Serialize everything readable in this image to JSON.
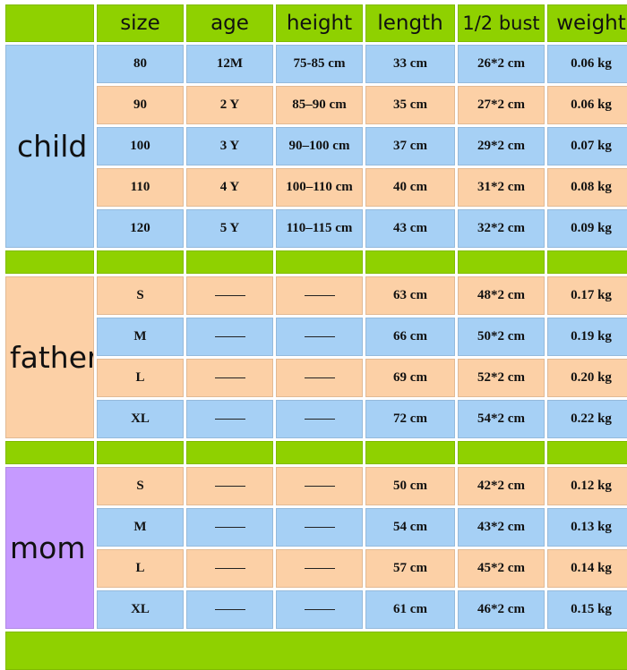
{
  "header": {
    "size": "size",
    "age": "age",
    "height": "height",
    "length": "length",
    "bust": "1/2 bust",
    "weight": "weight"
  },
  "groups": {
    "child": "child",
    "father": "father",
    "mom": "mom"
  },
  "child_rows": [
    {
      "size": "80",
      "age": "12M",
      "height": "75-85 cm",
      "length": "33 cm",
      "bust": "26*2 cm",
      "weight": "0.06 kg"
    },
    {
      "size": "90",
      "age": "2 Y",
      "height": "85–90 cm",
      "length": "35 cm",
      "bust": "27*2 cm",
      "weight": "0.06 kg"
    },
    {
      "size": "100",
      "age": "3 Y",
      "height": "90–100 cm",
      "length": "37 cm",
      "bust": "29*2 cm",
      "weight": "0.07 kg"
    },
    {
      "size": "110",
      "age": "4 Y",
      "height": "100–110 cm",
      "length": "40 cm",
      "bust": "31*2 cm",
      "weight": "0.08 kg"
    },
    {
      "size": "120",
      "age": "5 Y",
      "height": "110–115 cm",
      "length": "43 cm",
      "bust": "32*2 cm",
      "weight": "0.09 kg"
    }
  ],
  "father_rows": [
    {
      "size": "S",
      "length": "63 cm",
      "bust": "48*2 cm",
      "weight": "0.17 kg"
    },
    {
      "size": "M",
      "length": "66 cm",
      "bust": "50*2 cm",
      "weight": "0.19 kg"
    },
    {
      "size": "L",
      "length": "69 cm",
      "bust": "52*2 cm",
      "weight": "0.20 kg"
    },
    {
      "size": "XL",
      "length": "72 cm",
      "bust": "54*2 cm",
      "weight": "0.22 kg"
    }
  ],
  "mom_rows": [
    {
      "size": "S",
      "length": "50 cm",
      "bust": "42*2 cm",
      "weight": "0.12 kg"
    },
    {
      "size": "M",
      "length": "54 cm",
      "bust": "43*2 cm",
      "weight": "0.13 kg"
    },
    {
      "size": "L",
      "length": "57 cm",
      "bust": "45*2 cm",
      "weight": "0.14 kg"
    },
    {
      "size": "XL",
      "length": "61 cm",
      "bust": "46*2 cm",
      "weight": "0.15 kg"
    }
  ],
  "colors": {
    "header_green": "#8fd100",
    "row_blue": "#a6d0f5",
    "row_peach": "#fcd0a6",
    "mom_purple": "#c69aff"
  }
}
